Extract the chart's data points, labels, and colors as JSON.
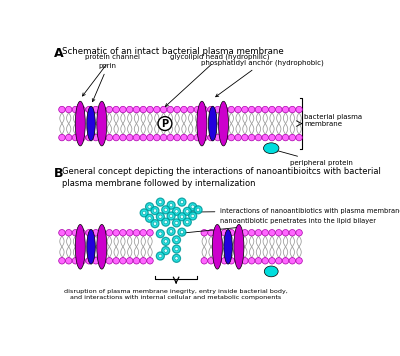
{
  "fig_width": 4.0,
  "fig_height": 3.56,
  "dpi": 100,
  "bg_color": "#ffffff",
  "magenta": "#CC00CC",
  "blue": "#2200DD",
  "cyan": "#00DDDD",
  "pink_head": "#FF66FF",
  "gray_tail": "#999999",
  "label_A": "A",
  "label_B": "B",
  "title_A": "Schematic of an intact bacterial plasma membrane",
  "title_B": "General concept depicting the interactions of nanoantibioitcs with bacterial\nplasma membrane followed by internalization",
  "label_protein_channel": "protein channel",
  "label_porin": "porin",
  "label_glycolipid": "glycolipid head (hydrophilic)",
  "label_phosphatidyl": "phosphatidyl anchor (hydrophobic)",
  "label_bacterial_plasma": "bacterial plasma\nmembrane",
  "label_peripheral": "peripheral protein",
  "label_nano_interact": "interactions of nanoantibiotics with plasma membrane",
  "label_nano_penetrates": "nanoantibiotic penetrates into the lipid bilayer",
  "label_disruption": "disruption of plasma membrane inegrity, entry inside bacterial body,\nand interactions with internal cellular and metabolic components"
}
